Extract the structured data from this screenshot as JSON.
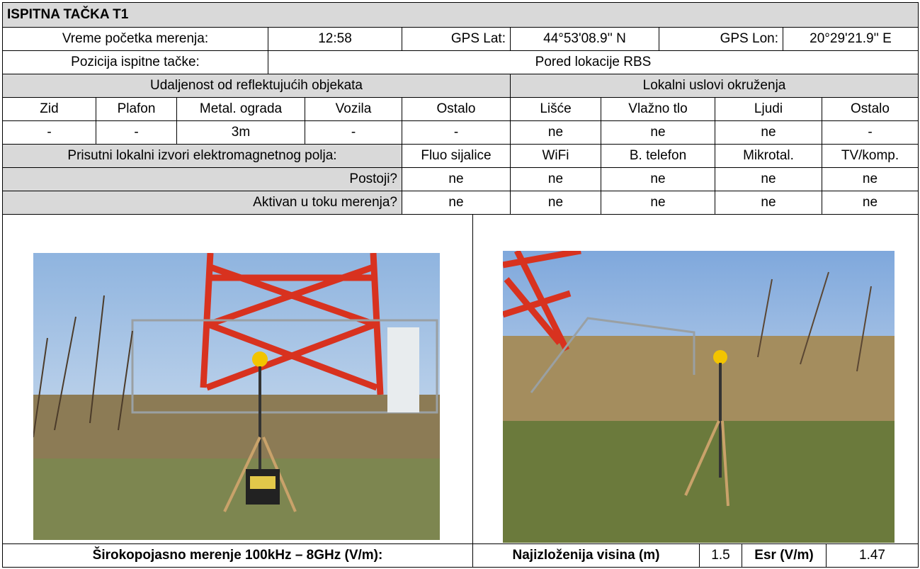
{
  "header": {
    "title": "ISPITNA TAČKA T1"
  },
  "info": {
    "start_time_label": "Vreme početka merenja:",
    "start_time": "12:58",
    "gps_lat_label": "GPS Lat:",
    "gps_lat": "44°53'08.9'' N",
    "gps_lon_label": "GPS Lon:",
    "gps_lon": "20°29'21.9'' E",
    "position_label": "Pozicija ispitne tačke:",
    "position": "Pored lokacije RBS"
  },
  "reflective": {
    "title": "Udaljenost od reflektujućih objekata",
    "columns": [
      "Zid",
      "Plafon",
      "Metal. ograda",
      "Vozila",
      "Ostalo"
    ],
    "values": [
      "-",
      "-",
      "3m",
      "-",
      "-"
    ]
  },
  "environment": {
    "title": "Lokalni uslovi okruženja",
    "columns": [
      "Lišće",
      "Vlažno tlo",
      "Ljudi",
      "Ostalo"
    ],
    "values": [
      "ne",
      "ne",
      "ne",
      "-"
    ]
  },
  "sources": {
    "title": "Prisutni lokalni izvori elektromagnetnog polja:",
    "columns": [
      "Fluo sijalice",
      "WiFi",
      "B. telefon",
      "Mikrotal.",
      "TV/komp."
    ],
    "rows": [
      {
        "label": "Postoji?",
        "values": [
          "ne",
          "ne",
          "ne",
          "ne",
          "ne"
        ]
      },
      {
        "label": "Aktivan u toku merenja?",
        "values": [
          "ne",
          "ne",
          "ne",
          "ne",
          "ne"
        ]
      }
    ]
  },
  "measurement": {
    "label": "Širokopojasno merenje 100kHz – 8GHz (V/m):",
    "height_label": "Najizloženija visina (m)",
    "height": 1.5,
    "esr_label": "Esr (V/m)",
    "esr": 1.47
  }
}
